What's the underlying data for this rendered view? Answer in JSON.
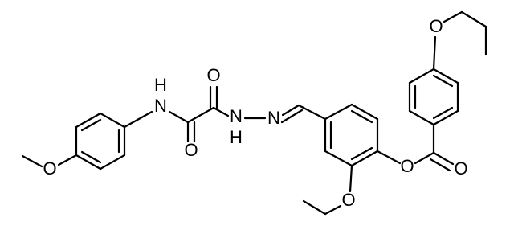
{
  "atoms": [
    "O",
    "H",
    "N",
    "O",
    "O",
    "N",
    "H",
    "N",
    "O",
    "O",
    "O",
    "O"
  ]
}
